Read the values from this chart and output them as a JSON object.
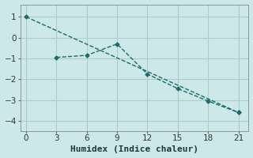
{
  "xlabel": "Humidex (Indice chaleur)",
  "bg_color": "#cce8e8",
  "grid_color": "#aacccc",
  "line_color": "#1e6b6b",
  "line1_x": [
    0,
    21
  ],
  "line1_y": [
    1.0,
    -3.6
  ],
  "line2_x": [
    3,
    6,
    9,
    12,
    15,
    18,
    21
  ],
  "line2_y": [
    -0.95,
    -0.85,
    -0.3,
    -1.75,
    -2.45,
    -3.05,
    -3.6
  ],
  "xlim": [
    -0.5,
    22
  ],
  "ylim": [
    -4.5,
    1.6
  ],
  "xticks": [
    0,
    3,
    6,
    9,
    12,
    15,
    18,
    21
  ],
  "yticks": [
    -4,
    -3,
    -2,
    -1,
    0,
    1
  ],
  "tick_fontsize": 7.5,
  "xlabel_fontsize": 8.0
}
